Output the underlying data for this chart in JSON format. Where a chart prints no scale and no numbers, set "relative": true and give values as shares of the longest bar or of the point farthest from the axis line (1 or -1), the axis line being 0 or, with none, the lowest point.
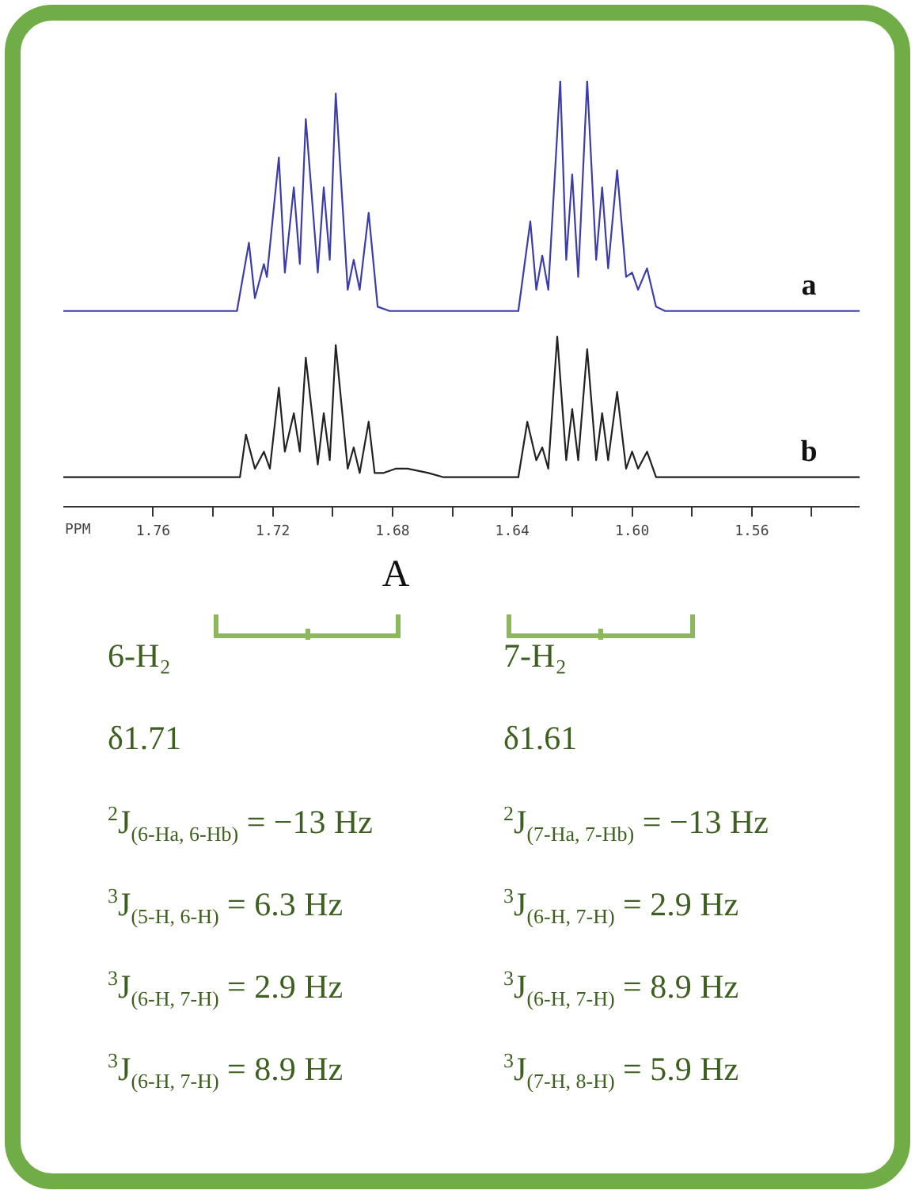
{
  "chart_data": {
    "type": "line",
    "relative": true,
    "xlim": [
      1.79,
      1.524
    ],
    "xlabel": "PPM",
    "tick_labels": "x",
    "xticks": [
      1.76,
      {
        "value": 1.74,
        "label": null
      },
      1.72,
      {
        "value": 1.7,
        "label": null
      },
      1.68,
      {
        "value": 1.66,
        "label": null
      },
      1.64,
      {
        "value": 1.62,
        "label": null
      },
      {
        "value": 1.6,
        "label": "1.60"
      },
      {
        "value": 1.58,
        "label": null
      },
      1.56,
      {
        "value": 1.54,
        "label": null
      }
    ],
    "series": [
      {
        "name": "a",
        "color": "#3c3caa",
        "x": [
          1.79,
          1.732,
          1.728,
          1.726,
          1.723,
          1.722,
          1.718,
          1.716,
          1.713,
          1.711,
          1.709,
          1.705,
          1.703,
          1.701,
          1.699,
          1.695,
          1.693,
          1.691,
          1.688,
          1.685,
          1.681,
          1.638,
          1.634,
          1.632,
          1.63,
          1.628,
          1.624,
          1.622,
          1.62,
          1.618,
          1.615,
          1.612,
          1.61,
          1.608,
          1.605,
          1.602,
          1.6,
          1.598,
          1.595,
          1.592,
          1.589,
          1.524
        ],
        "values": [
          0.46,
          0.46,
          0.62,
          0.49,
          0.57,
          0.54,
          0.82,
          0.55,
          0.75,
          0.57,
          0.91,
          0.55,
          0.75,
          0.58,
          0.97,
          0.51,
          0.58,
          0.51,
          0.69,
          0.47,
          0.46,
          0.46,
          0.67,
          0.51,
          0.59,
          0.51,
          1,
          0.58,
          0.78,
          0.54,
          1,
          0.58,
          0.75,
          0.56,
          0.79,
          0.54,
          0.55,
          0.51,
          0.56,
          0.47,
          0.46,
          0.46
        ]
      },
      {
        "name": "b",
        "color": "#222222",
        "x": [
          1.79,
          1.731,
          1.729,
          1.726,
          1.723,
          1.721,
          1.718,
          1.716,
          1.713,
          1.711,
          1.709,
          1.705,
          1.703,
          1.701,
          1.699,
          1.695,
          1.693,
          1.691,
          1.688,
          1.686,
          1.683,
          1.679,
          1.675,
          1.668,
          1.663,
          1.638,
          1.635,
          1.632,
          1.63,
          1.628,
          1.625,
          1.622,
          1.62,
          1.618,
          1.615,
          1.612,
          1.61,
          1.608,
          1.605,
          1.602,
          1.6,
          1.598,
          1.595,
          1.592,
          1.524
        ],
        "values": [
          0.07,
          0.07,
          0.17,
          0.09,
          0.13,
          0.09,
          0.28,
          0.13,
          0.22,
          0.13,
          0.35,
          0.1,
          0.22,
          0.11,
          0.38,
          0.09,
          0.14,
          0.08,
          0.2,
          0.08,
          0.08,
          0.09,
          0.09,
          0.08,
          0.07,
          0.07,
          0.2,
          0.11,
          0.14,
          0.09,
          0.4,
          0.11,
          0.23,
          0.11,
          0.37,
          0.11,
          0.22,
          0.11,
          0.27,
          0.09,
          0.13,
          0.09,
          0.13,
          0.07,
          0.07
        ]
      }
    ],
    "annotations": [
      "A",
      "6-H₂",
      "7-H₂",
      "δ1.71",
      "δ1.61",
      "$^{2}$J$_{(6-Ha, 6-Hb)}$ = −13 Hz",
      "$^{2}$J$_{(7-Ha, 7-Hb)}$ = −13 Hz",
      "$^{3}$J$_{(5-H, 6-H)}$ = 6.3 Hz",
      "$^{3}$J$_{(6-H, 7-H)}$ = 2.9 Hz",
      "$^{3}$J$_{(6-H, 7-H)}$ = 2.9 Hz",
      "$^{3}$J$_{(6-H, 7-H)}$ = 8.9 Hz",
      "$^{3}$J$_{(6-H, 7-H)}$ = 8.9 Hz",
      "$^{3}$J$_{(7-H, 8-H)}$ = 5.9 Hz"
    ]
  }
}
